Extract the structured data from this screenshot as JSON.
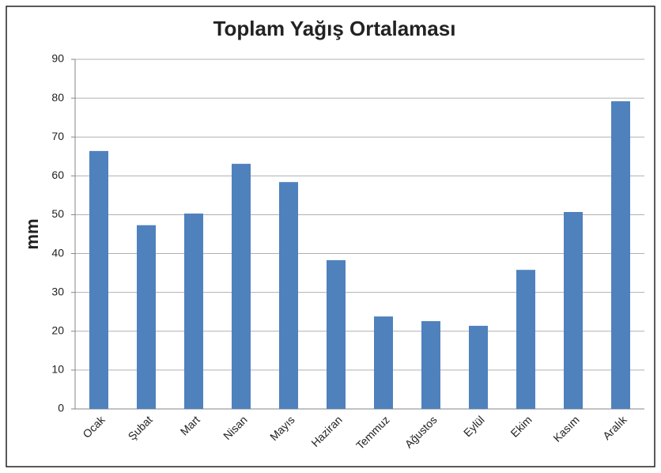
{
  "chart_data": {
    "type": "bar",
    "title": "Toplam Yağış Ortalaması",
    "y_label": "mm",
    "categories": [
      "Ocak",
      "Şubat",
      "Mart",
      "Nisan",
      "Mayıs",
      "Haziran",
      "Temmuz",
      "Ağustos",
      "Eylül",
      "Ekim",
      "Kasım",
      "Aralık"
    ],
    "values": [
      66.4,
      47.3,
      50.3,
      63.1,
      58.4,
      38.3,
      23.8,
      22.6,
      21.4,
      35.8,
      50.7,
      79.2
    ],
    "color": "#4f81bd",
    "ylim": [
      0,
      90
    ],
    "yticks": [
      0,
      10,
      20,
      30,
      40,
      50,
      60,
      70,
      80,
      90
    ],
    "grid": true
  }
}
